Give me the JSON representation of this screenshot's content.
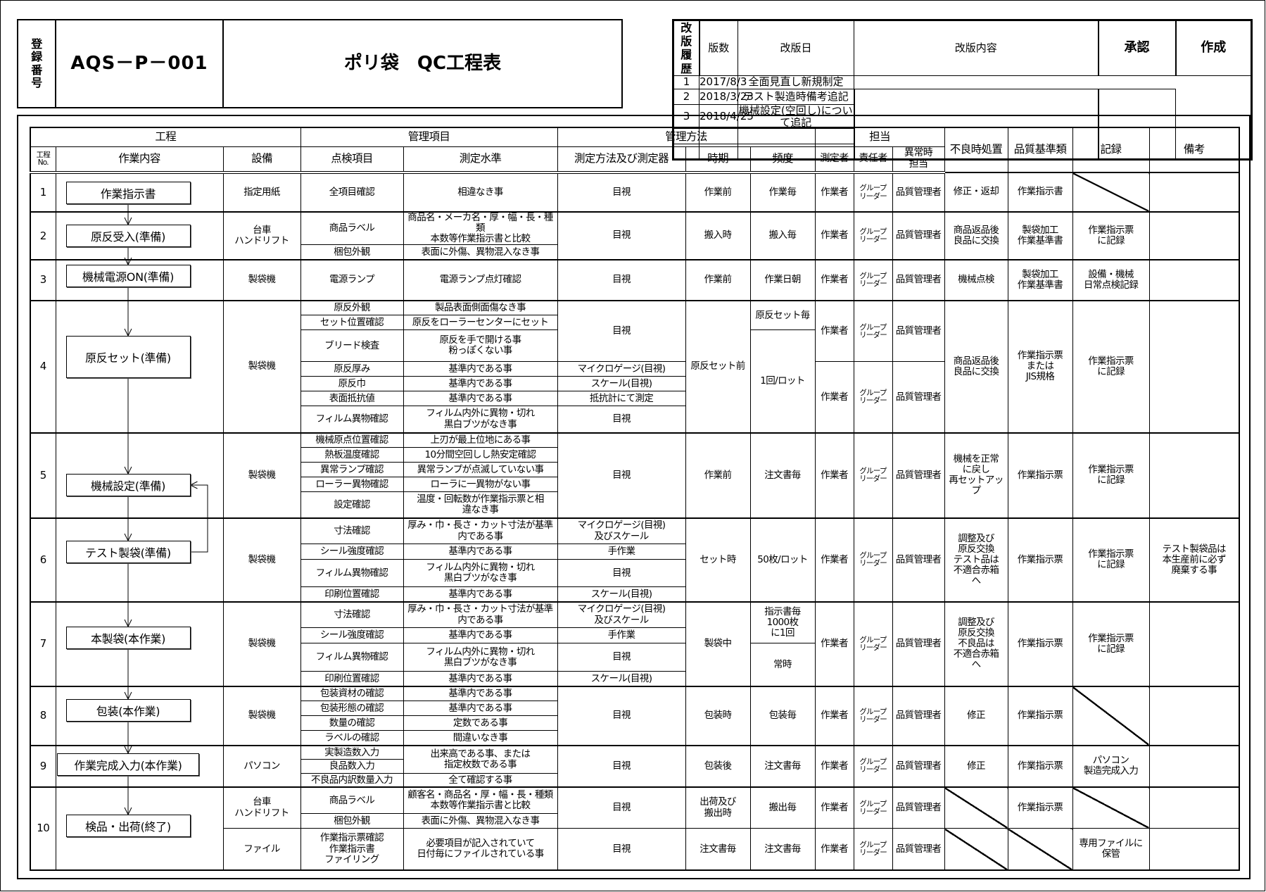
{
  "registration": {
    "label": "登\n録\n番\n号",
    "code": "AQS－P－001",
    "title": "ポリ袋　QC工程表"
  },
  "revision_history": {
    "label": "改\n版\n履\n歴",
    "headers": {
      "version": "版数",
      "date": "改版日",
      "content": "改版内容"
    },
    "approval_label": "承認",
    "author_label": "作成",
    "rows": [
      {
        "version": "1",
        "date": "2017/8/3",
        "content": "全面見直し新規制定"
      },
      {
        "version": "2",
        "date": "2018/3/23",
        "content": "テスト製造時備考追記"
      },
      {
        "version": "3",
        "date": "2018/4/25",
        "content": "機械設定(空回し)について追記"
      },
      {
        "version": "",
        "date": "",
        "content": ""
      },
      {
        "version": "",
        "date": "",
        "content": ""
      }
    ]
  },
  "table_headers": {
    "process": "工程",
    "control_items": "管理項目",
    "control_method": "管理方法",
    "responsibility": "担当",
    "defect_action": "不良時処置",
    "quality_standard": "品質基準類",
    "record": "記録",
    "remarks": "備考",
    "no": "工程\nNo.",
    "step": "作業内容",
    "equipment": "設備",
    "check_items": "点検項目",
    "standards": "測定水準",
    "methods": "測定方法及び測定器",
    "timing": "時期",
    "frequency": "頻度",
    "measurer": "測定者",
    "responsible": "責任者",
    "abnormal": "異常時\n担当"
  },
  "processes": [
    {
      "no": "1",
      "step": "作業指示書",
      "equipment": [
        "指定用紙"
      ],
      "check_items": [
        "全項目確認"
      ],
      "standards": [
        "相違なき事"
      ],
      "methods": [
        "目視"
      ],
      "timing": [
        "作業前"
      ],
      "frequency": [
        "作業毎"
      ],
      "measurer": [
        "作業者"
      ],
      "responsible": [
        "グループ\nリーダー"
      ],
      "abnormal": [
        "品質管理者"
      ],
      "defect_action": [
        "修正・返却"
      ],
      "quality_standard": [
        "作業指示書"
      ],
      "record": [
        null
      ],
      "remarks": [
        ""
      ]
    },
    {
      "no": "2",
      "step": "原反受入(準備)",
      "equipment": [
        "台車\nハンドリフト"
      ],
      "check_items": [
        "商品ラベル",
        "梱包外観"
      ],
      "standards": [
        "商品名・メーカ名・厚・幅・長・種類\n本数等作業指示書と比較",
        "表面に外傷、異物混入なき事"
      ],
      "methods": [
        "目視"
      ],
      "timing": [
        "搬入時"
      ],
      "frequency": [
        "搬入毎"
      ],
      "measurer": [
        "作業者"
      ],
      "responsible": [
        "グループ\nリーダー"
      ],
      "abnormal": [
        "品質管理者"
      ],
      "defect_action": [
        "商品返品後\n良品に交換"
      ],
      "quality_standard": [
        "製袋加工\n作業基準書"
      ],
      "record": [
        "作業指示票\nに記録"
      ],
      "remarks": [
        ""
      ]
    },
    {
      "no": "3",
      "step": "機械電源ON(準備)",
      "equipment": [
        "製袋機"
      ],
      "check_items": [
        "電源ランプ"
      ],
      "standards": [
        "電源ランプ点灯確認"
      ],
      "methods": [
        "目視"
      ],
      "timing": [
        "作業前"
      ],
      "frequency": [
        "作業日朝"
      ],
      "measurer": [
        "作業者"
      ],
      "responsible": [
        "グループ\nリーダー"
      ],
      "abnormal": [
        "品質管理者"
      ],
      "defect_action": [
        "機械点検"
      ],
      "quality_standard": [
        "製袋加工\n作業基準書"
      ],
      "record": [
        "設備・機械\n日常点検記録"
      ],
      "remarks": [
        ""
      ]
    },
    {
      "no": "4",
      "step": "原反セット(準備)",
      "equipment": [
        "製袋機"
      ],
      "check_items": [
        "原反外観",
        "セット位置確認",
        "ブリード検査",
        "原反厚み",
        "原反巾",
        "表面抵抗値",
        "フィルム異物確認"
      ],
      "standards": [
        "製品表面側面傷なき事",
        "原反をローラーセンターにセット",
        "原反を手で開ける事\n粉っぽくない事",
        "基準内である事",
        "基準内である事",
        "基準内である事",
        "フィルム内外に異物・切れ\n黒白ブツがなき事"
      ],
      "methods": [
        "目視",
        "マイクロゲージ(目視)",
        "スケール(目視)",
        "抵抗計にて測定",
        "目視"
      ],
      "timing": [
        "原反セット前"
      ],
      "frequency": [
        "原反セット毎",
        "1回/ロット"
      ],
      "measurer": [
        "作業者",
        "作業者"
      ],
      "responsible": [
        "グループ\nリーダー",
        "グループ\nリーダー"
      ],
      "abnormal": [
        "品質管理者",
        "品質管理者"
      ],
      "defect_action": [
        "商品返品後\n良品に交換"
      ],
      "quality_standard": [
        "作業指示票\nまたは\nJIS規格"
      ],
      "record": [
        "作業指示票\nに記録"
      ],
      "remarks": [
        ""
      ]
    },
    {
      "no": "5",
      "step": "機械設定(準備)",
      "equipment": [
        "製袋機"
      ],
      "check_items": [
        "機械原点位置確認",
        "熱板温度確認",
        "異常ランプ確認",
        "ローラー異物確認",
        "設定確認"
      ],
      "standards": [
        "上刃が最上位地にある事",
        "10分間空回しし熱安定確認",
        "異常ランプが点滅していない事",
        "ローラに一異物がない事",
        "温度・回転数が作業指示票と相\n違なき事"
      ],
      "methods": [
        "目視"
      ],
      "timing": [
        "作業前"
      ],
      "frequency": [
        "注文書毎"
      ],
      "measurer": [
        "作業者"
      ],
      "responsible": [
        "グループ\nリーダー"
      ],
      "abnormal": [
        "品質管理者"
      ],
      "defect_action": [
        "機械を正常\nに戻し\n再セットアッ\nプ"
      ],
      "quality_standard": [
        "作業指示票"
      ],
      "record": [
        "作業指示票\nに記録"
      ],
      "remarks": [
        ""
      ]
    },
    {
      "no": "6",
      "step": "テスト製袋(準備)",
      "equipment": [
        "製袋機"
      ],
      "check_items": [
        "寸法確認",
        "シール強度確認",
        "フィルム異物確認",
        "印刷位置確認"
      ],
      "standards": [
        "厚み・巾・長さ・カット寸法が基準\n内である事",
        "基準内である事",
        "フィルム内外に異物・切れ\n黒白ブツがなき事",
        "基準内である事"
      ],
      "methods": [
        "マイクロゲージ(目視)\n及びスケール",
        "手作業",
        "目視",
        "スケール(目視)"
      ],
      "timing": [
        "セット時"
      ],
      "frequency": [
        "50枚/ロット"
      ],
      "measurer": [
        "作業者"
      ],
      "responsible": [
        "グループ\nリーダー"
      ],
      "abnormal": [
        "品質管理者"
      ],
      "defect_action": [
        "調整及び\n原反交換\nテスト品は\n不適合赤箱\nへ"
      ],
      "quality_standard": [
        "作業指示票"
      ],
      "record": [
        "作業指示票\nに記録"
      ],
      "remarks": [
        "テスト製袋品は\n本生産前に必ず\n廃棄する事"
      ]
    },
    {
      "no": "7",
      "step": "本製袋(本作業)",
      "equipment": [
        "製袋機"
      ],
      "check_items": [
        "寸法確認",
        "シール強度確認",
        "フィルム異物確認",
        "印刷位置確認"
      ],
      "standards": [
        "厚み・巾・長さ・カット寸法が基準\n内である事",
        "基準内である事",
        "フィルム内外に異物・切れ\n黒白ブツがなき事",
        "基準内である事"
      ],
      "methods": [
        "マイクロゲージ(目視)\n及びスケール",
        "手作業",
        "目視",
        "スケール(目視)"
      ],
      "timing": [
        "製袋中"
      ],
      "frequency": [
        "指示書毎\n1000枚\nに1回",
        "常時"
      ],
      "measurer": [
        "作業者"
      ],
      "responsible": [
        "グループ\nリーダー"
      ],
      "abnormal": [
        "品質管理者"
      ],
      "defect_action": [
        "調整及び\n原反交換\n不良品は\n不適合赤箱\nへ"
      ],
      "quality_standard": [
        "作業指示票"
      ],
      "record": [
        "作業指示票\nに記録"
      ],
      "remarks": [
        ""
      ]
    },
    {
      "no": "8",
      "step": "包装(本作業)",
      "equipment": [
        "製袋機"
      ],
      "check_items": [
        "包装資材の確認",
        "包装形態の確認",
        "数量の確認",
        "ラベルの確認"
      ],
      "standards": [
        "基準内である事",
        "基準内である事",
        "定数である事",
        "間違いなき事"
      ],
      "methods": [
        "目視"
      ],
      "timing": [
        "包装時"
      ],
      "frequency": [
        "包装毎"
      ],
      "measurer": [
        "作業者"
      ],
      "responsible": [
        "グループ\nリーダー"
      ],
      "abnormal": [
        "品質管理者"
      ],
      "defect_action": [
        "修正"
      ],
      "quality_standard": [
        "作業指示票"
      ],
      "record": [
        null
      ],
      "remarks": [
        ""
      ]
    },
    {
      "no": "9",
      "step": "作業完成入力(本作業)",
      "equipment": [
        "パソコン"
      ],
      "check_items": [
        "実製造数入力",
        "良品数入力",
        "不良品内訳数量入力"
      ],
      "standards": [
        "出来高である事、または\n指定枚数である事",
        "全て確認する事"
      ],
      "methods": [
        "目視"
      ],
      "timing": [
        "包装後"
      ],
      "frequency": [
        "注文書毎"
      ],
      "measurer": [
        "作業者"
      ],
      "responsible": [
        "グループ\nリーダー"
      ],
      "abnormal": [
        "品質管理者"
      ],
      "defect_action": [
        "修正"
      ],
      "quality_standard": [
        "作業指示票"
      ],
      "record": [
        "パソコン\n製造完成入力"
      ],
      "remarks": [
        ""
      ]
    },
    {
      "no": "10",
      "step": "検品・出荷(終了)",
      "equipment": [
        "台車\nハンドリフト",
        "ファイル"
      ],
      "check_items": [
        "商品ラベル",
        "梱包外観",
        "作業指示票確認\n作業指示書\nファイリング"
      ],
      "standards": [
        "顧客名・商品名・厚・幅・長・種類\n本数等作業指示書と比較",
        "表面に外傷、異物混入なき事",
        "必要項目が記入されていて\n日付毎にファイルされている事"
      ],
      "methods": [
        "目視",
        "目視"
      ],
      "timing": [
        "出荷及び\n搬出時",
        "注文書毎"
      ],
      "frequency": [
        "搬出毎",
        "注文書毎"
      ],
      "measurer": [
        "作業者",
        "作業者"
      ],
      "responsible": [
        "グループ\nリーダー",
        "グループ\nリーダー"
      ],
      "abnormal": [
        "品質管理者",
        "品質管理者"
      ],
      "defect_action": [
        null,
        null
      ],
      "quality_standard": [
        "作業指示票",
        null
      ],
      "record": [
        null,
        "専用ファイルに\n保管"
      ],
      "remarks": [
        "",
        ""
      ]
    }
  ]
}
